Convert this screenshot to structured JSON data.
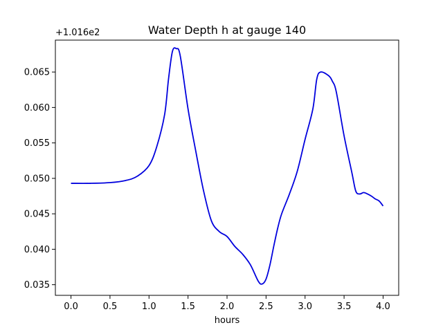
{
  "chart_data": {
    "type": "line",
    "title": "Water Depth h at gauge 140",
    "xlabel": "hours",
    "ylabel": "",
    "y_offset_label": "+1.016e2",
    "xlim": [
      -0.2,
      4.2
    ],
    "ylim": [
      0.0335,
      0.0695
    ],
    "x_ticks": [
      0.0,
      0.5,
      1.0,
      1.5,
      2.0,
      2.5,
      3.0,
      3.5,
      4.0
    ],
    "x_tick_labels": [
      "0.0",
      "0.5",
      "1.0",
      "1.5",
      "2.0",
      "2.5",
      "3.0",
      "3.5",
      "4.0"
    ],
    "y_ticks": [
      0.035,
      0.04,
      0.045,
      0.05,
      0.055,
      0.06,
      0.065
    ],
    "y_tick_labels": [
      "0.035",
      "0.040",
      "0.045",
      "0.050",
      "0.055",
      "0.060",
      "0.065"
    ],
    "grid": false,
    "series": [
      {
        "color": "#0000dd",
        "x": [
          0.0,
          0.25,
          0.5,
          0.7,
          0.85,
          1.0,
          1.1,
          1.2,
          1.25,
          1.3,
          1.35,
          1.4,
          1.5,
          1.6,
          1.7,
          1.8,
          1.9,
          2.0,
          2.1,
          2.2,
          2.3,
          2.4,
          2.45,
          2.5,
          2.55,
          2.6,
          2.65,
          2.7,
          2.8,
          2.9,
          3.0,
          3.1,
          3.15,
          3.2,
          3.3,
          3.35,
          3.4,
          3.5,
          3.6,
          3.65,
          3.7,
          3.75,
          3.8,
          3.85,
          3.9,
          3.95,
          4.0
        ],
        "y": [
          0.0493,
          0.0493,
          0.0494,
          0.0497,
          0.0503,
          0.0518,
          0.0545,
          0.059,
          0.064,
          0.0679,
          0.0683,
          0.0673,
          0.0598,
          0.0538,
          0.0482,
          0.044,
          0.0425,
          0.0418,
          0.0404,
          0.0393,
          0.0378,
          0.0355,
          0.0351,
          0.0358,
          0.0378,
          0.0405,
          0.043,
          0.045,
          0.0478,
          0.051,
          0.0555,
          0.0598,
          0.064,
          0.065,
          0.0645,
          0.0637,
          0.0622,
          0.056,
          0.0508,
          0.0482,
          0.0478,
          0.048,
          0.0478,
          0.0475,
          0.0471,
          0.0468,
          0.0461
        ]
      }
    ]
  }
}
